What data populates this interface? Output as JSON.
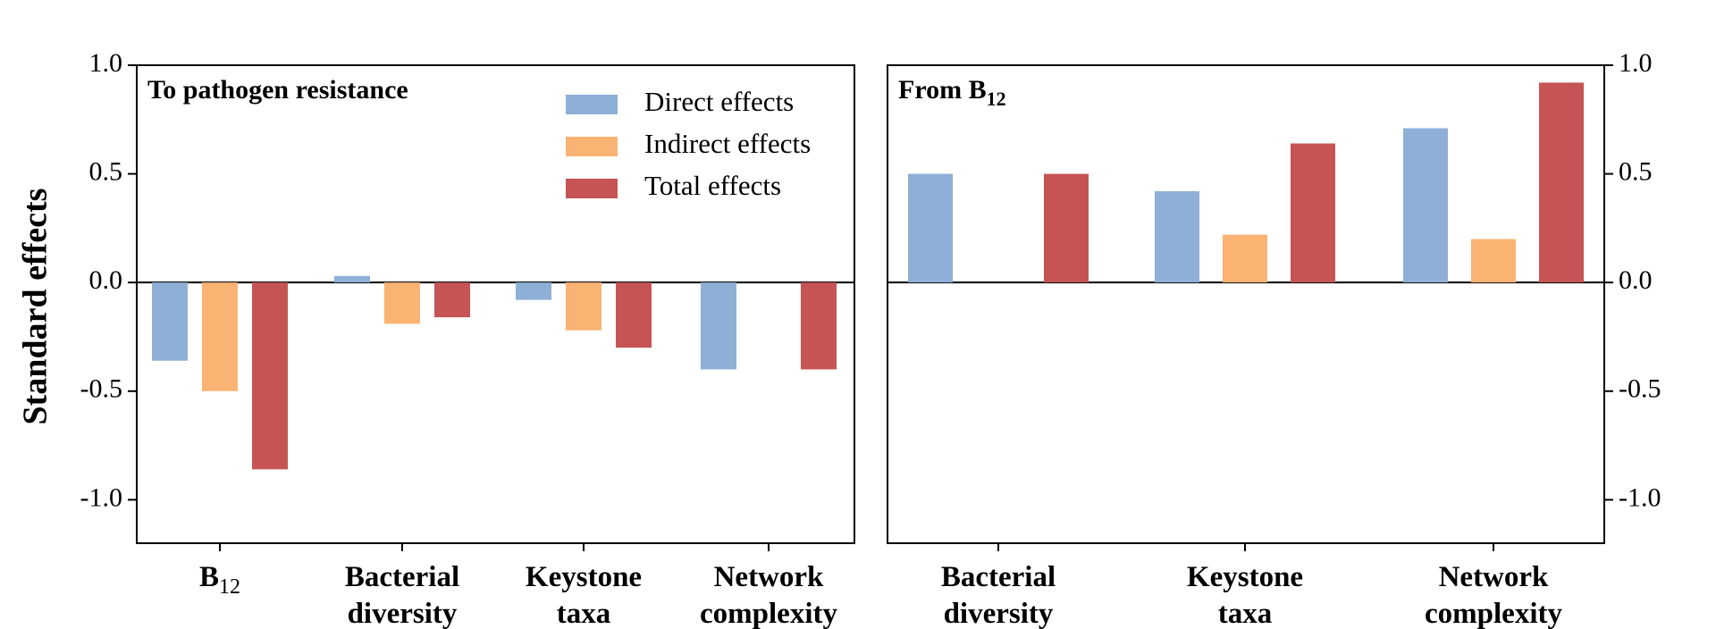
{
  "chart_data": {
    "type": "bar",
    "ylabel": "Standard effects",
    "colors": {
      "Direct effects": "#8eafd6",
      "Indirect effects": "#fbb374",
      "Total effects": "#c65454"
    },
    "legend": {
      "position": "top-right of left panel",
      "entries": [
        "Direct effects",
        "Indirect effects",
        "Total effects"
      ]
    },
    "panels": [
      {
        "title": "To pathogen resistance",
        "ylim": [
          -1.2,
          1.0
        ],
        "yticks": [
          {
            "value": 1.0,
            "label": "1.0"
          },
          {
            "value": 0.5,
            "label": "0.5"
          },
          {
            "value": 0.0,
            "label": "0.0"
          },
          {
            "value": -0.5,
            "label": "-0.5"
          },
          {
            "value": -1.0,
            "label": "-1.0"
          }
        ],
        "categories": [
          {
            "line1": "B",
            "sub": "12"
          },
          {
            "line1": "Bacterial",
            "line2": "diversity"
          },
          {
            "line1": "Keystone",
            "line2": "taxa"
          },
          {
            "line1": "Network",
            "line2": "complexity"
          }
        ],
        "series": [
          {
            "name": "Direct effects",
            "values": [
              -0.36,
              0.03,
              -0.08,
              -0.4
            ]
          },
          {
            "name": "Indirect effects",
            "values": [
              -0.5,
              -0.19,
              -0.22,
              0
            ]
          },
          {
            "name": "Total effects",
            "values": [
              -0.86,
              -0.16,
              -0.3,
              -0.4
            ]
          }
        ]
      },
      {
        "title": "From B",
        "title_sub": "12",
        "ylim": [
          -1.2,
          1.0
        ],
        "yticks": [
          {
            "value": 1.0,
            "label": "1.0"
          },
          {
            "value": 0.5,
            "label": "0.5"
          },
          {
            "value": 0.0,
            "label": "0.0"
          },
          {
            "value": -0.5,
            "label": "-0.5"
          },
          {
            "value": -1.0,
            "label": "-1.0"
          }
        ],
        "categories": [
          {
            "line1": "Bacterial",
            "line2": "diversity"
          },
          {
            "line1": "Keystone",
            "line2": "taxa"
          },
          {
            "line1": "Network",
            "line2": "complexity"
          }
        ],
        "series": [
          {
            "name": "Direct effects",
            "values": [
              0.5,
              0.42,
              0.71
            ]
          },
          {
            "name": "Indirect effects",
            "values": [
              0,
              0.22,
              0.2
            ]
          },
          {
            "name": "Total effects",
            "values": [
              0.5,
              0.64,
              0.92
            ]
          }
        ]
      }
    ]
  }
}
